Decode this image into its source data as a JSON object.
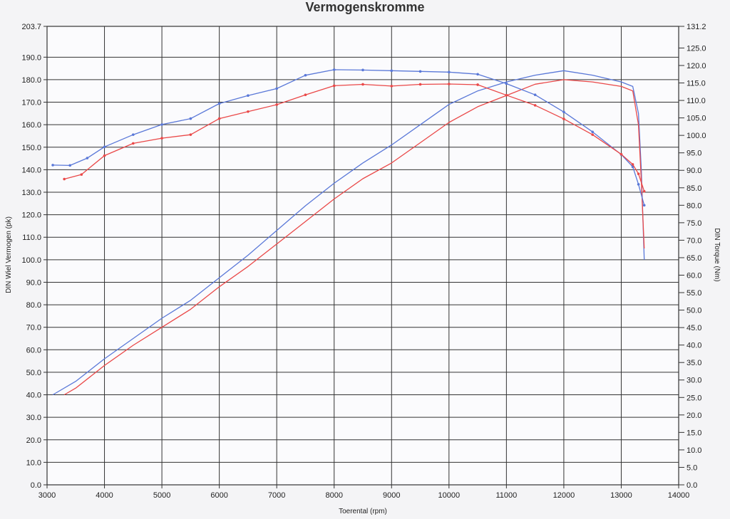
{
  "chart_data": {
    "type": "line",
    "title": "Vermogenskromme",
    "xlabel": "Toerental (rpm)",
    "ylabel_left": "DIN Wiel Vermogen (pk)",
    "ylabel_right": "DIN Torque (Nm)",
    "xlim": [
      3000,
      14000
    ],
    "ylim_left": [
      0,
      203.7
    ],
    "ylim_right": [
      0,
      131.2
    ],
    "x_ticks": [
      "3000",
      "4000",
      "5000",
      "6000",
      "7000",
      "8000",
      "9000",
      "10000",
      "11000",
      "12000",
      "13000",
      "14000"
    ],
    "y_left_ticks": [
      "0.0",
      "10.0",
      "20.0",
      "30.0",
      "40.0",
      "50.0",
      "60.0",
      "70.0",
      "80.0",
      "90.0",
      "100.0",
      "110.0",
      "120.0",
      "130.0",
      "140.0",
      "150.0",
      "160.0",
      "170.0",
      "180.0",
      "190.0",
      "203.7"
    ],
    "y_right_ticks": [
      "0.0",
      "5.0",
      "10.0",
      "15.0",
      "20.0",
      "25.0",
      "30.0",
      "35.0",
      "40.0",
      "45.0",
      "50.0",
      "55.0",
      "60.0",
      "65.0",
      "70.0",
      "75.0",
      "80.0",
      "85.0",
      "90.0",
      "95.0",
      "100.0",
      "105.0",
      "110.0",
      "115.0",
      "120.0",
      "125.0",
      "131.2"
    ],
    "grid": true,
    "colors": {
      "blue": "#5a78d8",
      "red": "#ea4848",
      "grid": "#333333"
    },
    "series": [
      {
        "axis": "left",
        "color": "blue",
        "x": [
          3100,
          3500,
          4000,
          4500,
          5000,
          5500,
          6000,
          6500,
          7000,
          7500,
          8000,
          8500,
          9000,
          9500,
          10000,
          10500,
          11000,
          11500,
          12000,
          12500,
          13000,
          13200,
          13300,
          13350,
          13400
        ],
        "values": [
          40,
          46,
          56,
          65,
          74,
          82,
          92,
          102,
          113,
          124,
          134,
          143,
          151,
          160,
          169,
          175,
          179,
          182,
          184,
          182,
          179,
          177,
          165,
          140,
          100
        ]
      },
      {
        "axis": "left",
        "color": "red",
        "x": [
          3300,
          3500,
          4000,
          4500,
          5000,
          5500,
          6000,
          6500,
          7000,
          7500,
          8000,
          8500,
          9000,
          9500,
          10000,
          10500,
          11000,
          11500,
          12000,
          12500,
          13000,
          13200,
          13300,
          13350,
          13400
        ],
        "values": [
          40,
          43,
          53,
          62,
          70,
          78,
          88,
          97,
          107,
          117,
          127,
          136,
          143,
          152,
          161,
          168,
          173,
          178,
          180,
          179,
          177,
          175,
          160,
          135,
          105
        ]
      },
      {
        "axis": "right",
        "color": "blue",
        "x": [
          3100,
          3400,
          3700,
          4000,
          4500,
          5000,
          5500,
          6000,
          6500,
          7000,
          7500,
          8000,
          8500,
          9000,
          9500,
          10000,
          10500,
          11000,
          11500,
          12000,
          12500,
          13000,
          13200,
          13300,
          13400
        ],
        "values": [
          91.5,
          91.4,
          93.5,
          96.7,
          100.2,
          103.1,
          104.8,
          109.1,
          111.4,
          113.4,
          117.2,
          118.8,
          118.7,
          118.5,
          118.3,
          118.1,
          117.5,
          114.8,
          111.6,
          106.7,
          101,
          94.5,
          91,
          86,
          80
        ]
      },
      {
        "axis": "right",
        "color": "red",
        "x": [
          3300,
          3600,
          4000,
          4500,
          5000,
          5500,
          6000,
          6500,
          7000,
          7500,
          8000,
          8500,
          9000,
          9500,
          10000,
          10500,
          11000,
          11500,
          12000,
          12500,
          13000,
          13200,
          13300,
          13400
        ],
        "values": [
          87.5,
          88.8,
          94.2,
          97.7,
          99.2,
          100.2,
          104.8,
          106.8,
          108.8,
          111.6,
          114.2,
          114.6,
          114.1,
          114.6,
          114.7,
          114.5,
          111.5,
          108.6,
          104.7,
          100.2,
          94.6,
          91.7,
          89,
          84
        ]
      }
    ]
  }
}
